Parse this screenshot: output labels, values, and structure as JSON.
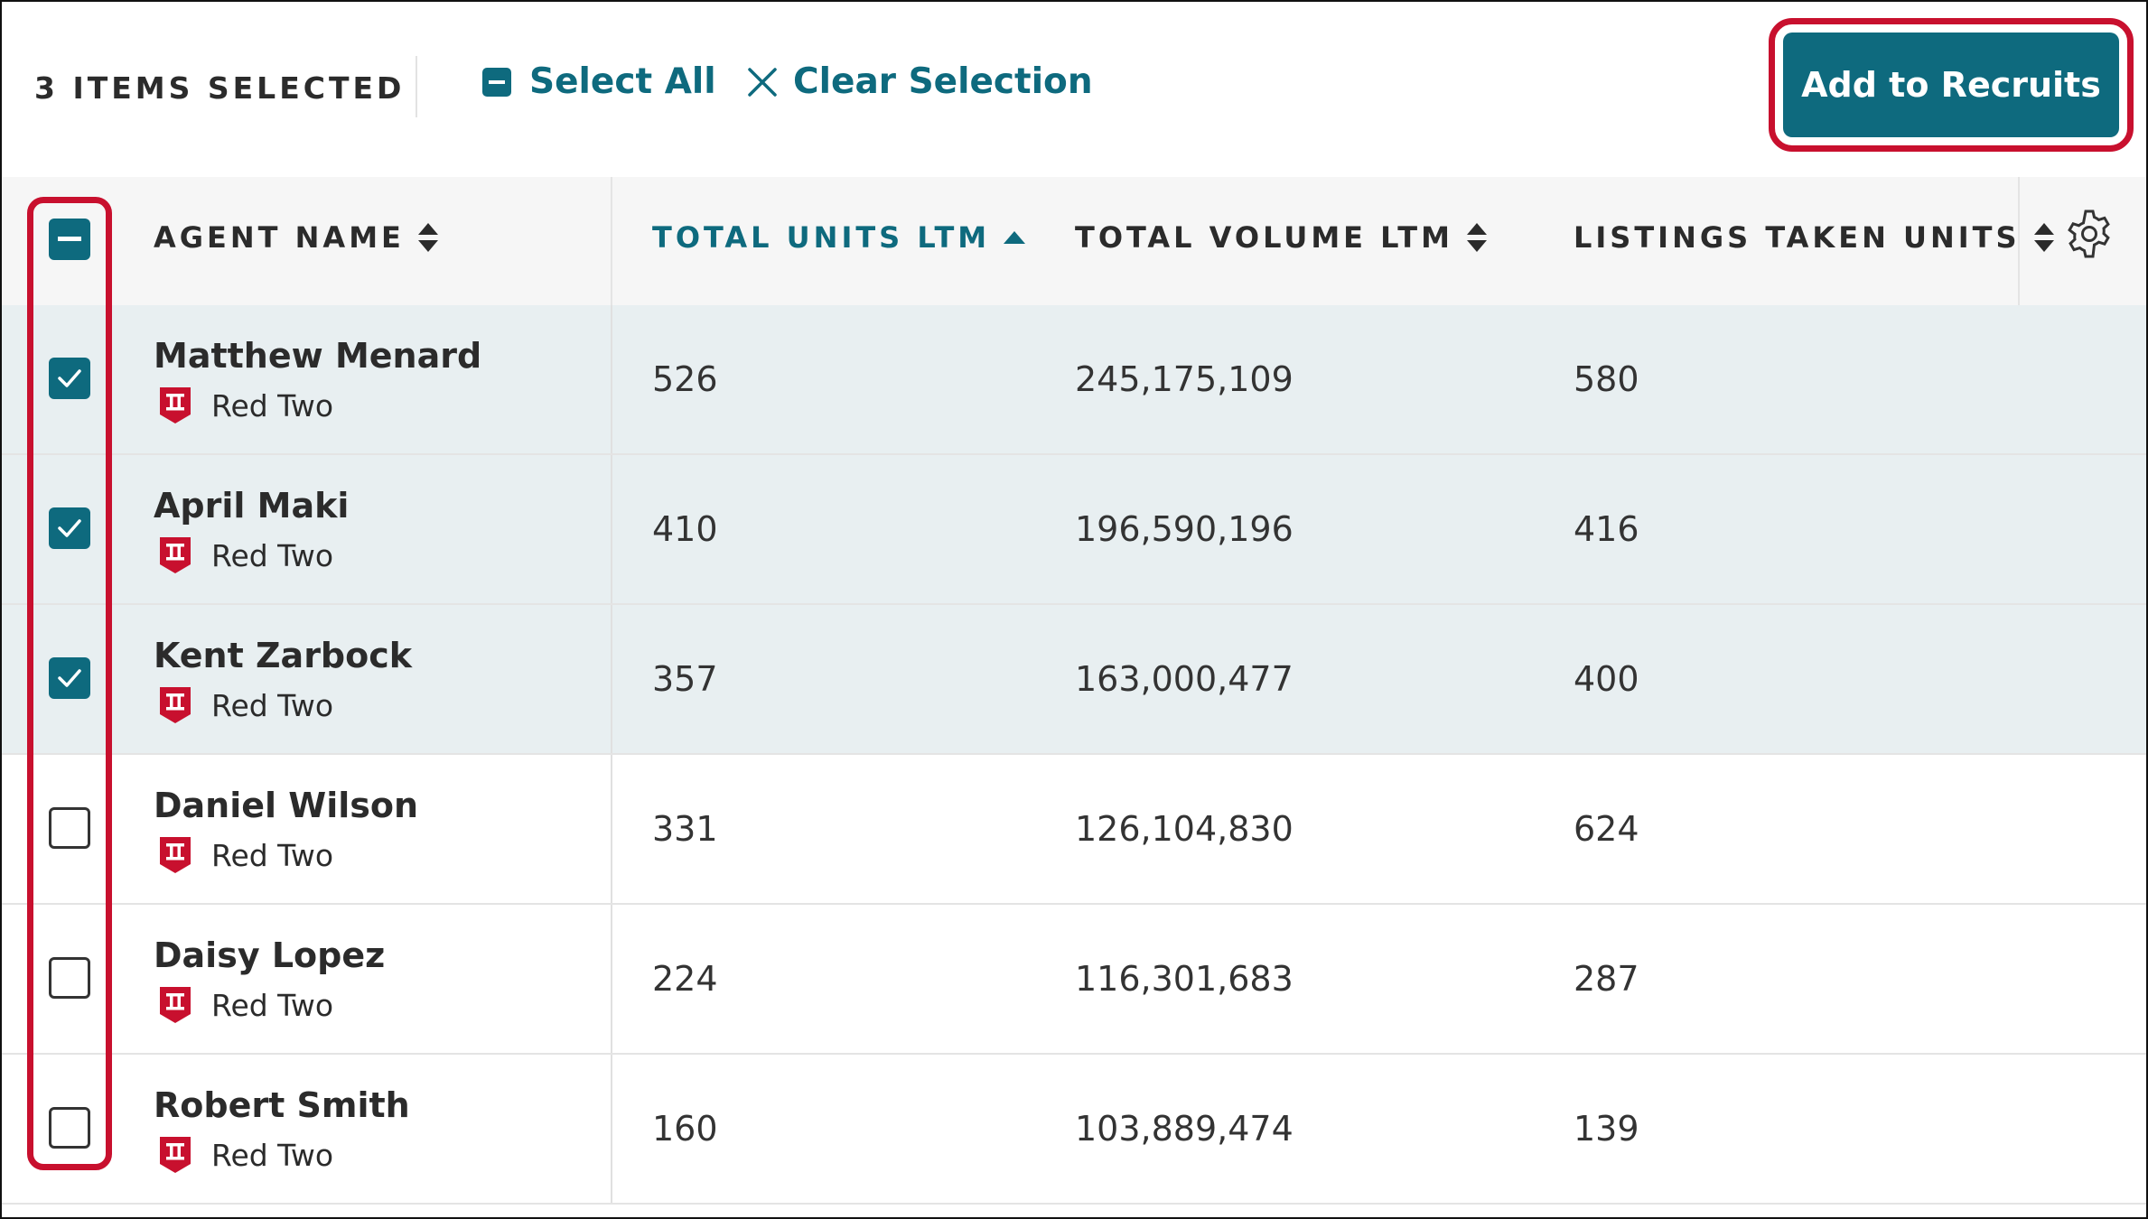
{
  "selection_bar": {
    "count_label": "3 ITEMS SELECTED",
    "select_all_label": "Select All",
    "clear_selection_label": "Clear Selection",
    "add_button_label": "Add to Recruits"
  },
  "table": {
    "columns": [
      {
        "label": "AGENT NAME",
        "sort": "none"
      },
      {
        "label": "TOTAL UNITS LTM",
        "sort": "ascending"
      },
      {
        "label": "TOTAL VOLUME LTM",
        "sort": "none"
      },
      {
        "label": "LISTINGS TAKEN UNITS",
        "sort": "none"
      }
    ],
    "rows": [
      {
        "name": "Matthew Menard",
        "office": "Red Two",
        "units": "526",
        "volume": "245,175,109",
        "listings": "580",
        "selected": true
      },
      {
        "name": "April Maki",
        "office": "Red Two",
        "units": "410",
        "volume": "196,590,196",
        "listings": "416",
        "selected": true
      },
      {
        "name": "Kent Zarbock",
        "office": "Red Two",
        "units": "357",
        "volume": "163,000,477",
        "listings": "400",
        "selected": true
      },
      {
        "name": "Daniel Wilson",
        "office": "Red Two",
        "units": "331",
        "volume": "126,104,830",
        "listings": "624",
        "selected": false
      },
      {
        "name": "Daisy Lopez",
        "office": "Red Two",
        "units": "224",
        "volume": "116,301,683",
        "listings": "287",
        "selected": false
      },
      {
        "name": "Robert Smith",
        "office": "Red Two",
        "units": "160",
        "volume": "103,889,474",
        "listings": "139",
        "selected": false
      }
    ]
  },
  "colors": {
    "accent": "#0e6a7e",
    "highlight": "#c8102e",
    "selected_row": "#e8eff1",
    "header_bg": "#f6f6f6"
  },
  "icons": {
    "select_all": "minus-square-icon",
    "clear": "close-icon",
    "sort": "sort-arrows-icon",
    "sort_active": "sort-up-icon",
    "settings": "gear-icon",
    "office": "office-badge-icon",
    "check": "check-icon"
  }
}
